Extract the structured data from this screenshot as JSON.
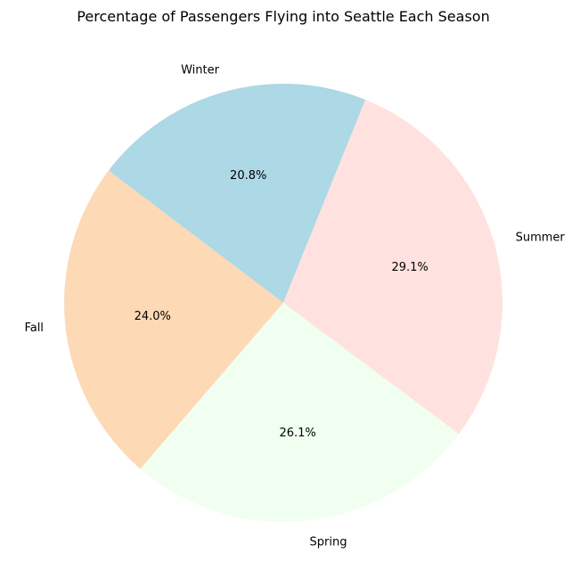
{
  "chart_data": {
    "type": "pie",
    "title": "Percentage of Passengers Flying into Seattle Each Season",
    "slices": [
      {
        "label": "Winter",
        "value": 20.8,
        "pct_label": "20.8%",
        "color": "#add8e6"
      },
      {
        "label": "Fall",
        "value": 24.0,
        "pct_label": "24.0%",
        "color": "#fdd9b6"
      },
      {
        "label": "Spring",
        "value": 26.1,
        "pct_label": "26.1%",
        "color": "#f0fff0"
      },
      {
        "label": "Summer",
        "value": 29.1,
        "pct_label": "29.1%",
        "color": "#ffe2df"
      }
    ],
    "start_angle_deg": 68,
    "direction": "counterclockwise",
    "legend": "none"
  }
}
